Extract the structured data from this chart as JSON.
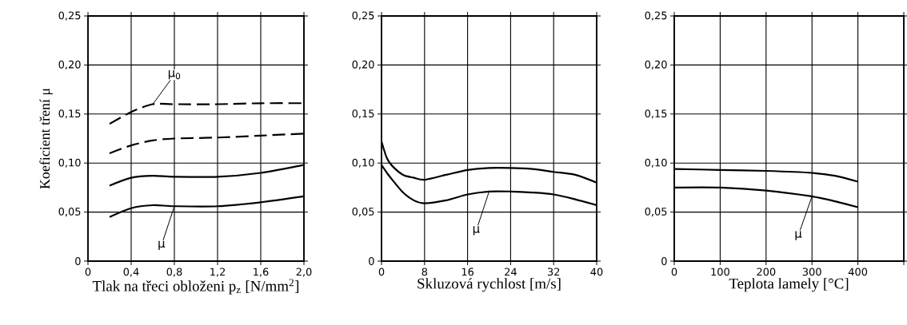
{
  "chart_data": [
    {
      "type": "line",
      "ylabel": "Koeficient tření μ",
      "xlabel": "Tlak na třeci obloženi p$_{z}$ [N/mm$^{2}$]",
      "grid": true,
      "marker": "none",
      "xlim": [
        0,
        2.0
      ],
      "ylim": [
        0,
        0.25
      ],
      "xticks": [
        0,
        {
          "value": 0.4,
          "label": "0,4"
        },
        {
          "value": 0.8,
          "label": "0,8"
        },
        {
          "value": 1.2,
          "label": "1,2"
        },
        {
          "value": 1.6,
          "label": "1,6"
        },
        {
          "value": 2.0,
          "label": "2,0"
        }
      ],
      "yticks": [
        0,
        {
          "value": 0.05,
          "label": "0,05"
        },
        {
          "value": 0.1,
          "label": "0,10"
        },
        {
          "value": 0.15,
          "label": "0,15"
        },
        {
          "value": 0.2,
          "label": "0,20"
        },
        {
          "value": 0.25,
          "label": "0,25"
        }
      ],
      "series": [
        {
          "color": "#000000",
          "line_style": "dashed",
          "x": [
            0.2,
            0.4,
            0.6,
            0.8,
            1.2,
            1.6,
            2.0
          ],
          "values": [
            0.14,
            0.152,
            0.16,
            0.16,
            0.16,
            0.161,
            0.161
          ]
        },
        {
          "color": "#000000",
          "line_style": "dashed",
          "x": [
            0.2,
            0.4,
            0.6,
            0.8,
            1.2,
            1.6,
            2.0
          ],
          "values": [
            0.11,
            0.118,
            0.123,
            0.125,
            0.126,
            0.128,
            0.13
          ]
        },
        {
          "color": "#000000",
          "line_style": "solid",
          "x": [
            0.2,
            0.4,
            0.6,
            0.8,
            1.2,
            1.6,
            2.0
          ],
          "values": [
            0.077,
            0.085,
            0.087,
            0.086,
            0.086,
            0.09,
            0.098
          ]
        },
        {
          "color": "#000000",
          "line_style": "solid",
          "x": [
            0.2,
            0.4,
            0.6,
            0.8,
            1.2,
            1.6,
            2.0
          ],
          "values": [
            0.045,
            0.054,
            0.057,
            0.056,
            0.056,
            0.06,
            0.066
          ]
        }
      ],
      "annotations": [
        {
          "text": "μ$_{0}$",
          "x": 0.6,
          "y": 0.16
        },
        {
          "text": "μ",
          "x": 0.8,
          "y": 0.056
        }
      ]
    },
    {
      "type": "line",
      "xlabel": "Skluzová rychlost [m/s]",
      "grid": true,
      "marker": "none",
      "xlim": [
        0,
        40
      ],
      "ylim": [
        0,
        0.25
      ],
      "xticks": [
        0,
        8,
        16,
        24,
        32,
        40
      ],
      "yticks": [
        0,
        {
          "value": 0.05,
          "label": "0,05"
        },
        {
          "value": 0.1,
          "label": "0,10"
        },
        {
          "value": 0.15,
          "label": "0,15"
        },
        {
          "value": 0.2,
          "label": "0,20"
        },
        {
          "value": 0.25,
          "label": "0,25"
        }
      ],
      "series": [
        {
          "color": "#000000",
          "line_style": "solid",
          "x": [
            0,
            1,
            2,
            4,
            6,
            8,
            12,
            16,
            20,
            24,
            28,
            32,
            36,
            40
          ],
          "values": [
            0.122,
            0.105,
            0.097,
            0.088,
            0.085,
            0.083,
            0.088,
            0.093,
            0.095,
            0.095,
            0.094,
            0.091,
            0.088,
            0.08
          ]
        },
        {
          "color": "#000000",
          "line_style": "solid",
          "x": [
            0,
            1,
            2,
            4,
            6,
            8,
            12,
            16,
            20,
            24,
            28,
            32,
            36,
            40
          ],
          "values": [
            0.098,
            0.09,
            0.083,
            0.07,
            0.062,
            0.059,
            0.062,
            0.068,
            0.071,
            0.071,
            0.07,
            0.068,
            0.063,
            0.057
          ]
        }
      ],
      "annotations": [
        {
          "text": "μ",
          "x": 20,
          "y": 0.071
        }
      ]
    },
    {
      "type": "line",
      "xlabel": "Teplota lamely [°C]",
      "grid": true,
      "marker": "none",
      "xlim": [
        0,
        500
      ],
      "ylim": [
        0,
        0.25
      ],
      "xticks": [
        0,
        100,
        200,
        300,
        400,
        {
          "value": 500,
          "label": null
        }
      ],
      "yticks": [
        0,
        {
          "value": 0.05,
          "label": "0,05"
        },
        {
          "value": 0.1,
          "label": "0,10"
        },
        {
          "value": 0.15,
          "label": "0,15"
        },
        {
          "value": 0.2,
          "label": "0,20"
        },
        {
          "value": 0.25,
          "label": "0,25"
        }
      ],
      "series": [
        {
          "color": "#000000",
          "line_style": "solid",
          "x": [
            0,
            100,
            200,
            300,
            350,
            400
          ],
          "values": [
            0.094,
            0.093,
            0.092,
            0.09,
            0.087,
            0.081
          ]
        },
        {
          "color": "#000000",
          "line_style": "solid",
          "x": [
            0,
            100,
            200,
            300,
            350,
            400
          ],
          "values": [
            0.075,
            0.075,
            0.072,
            0.066,
            0.061,
            0.055
          ]
        }
      ],
      "annotations": [
        {
          "text": "μ",
          "x": 300,
          "y": 0.066
        }
      ]
    }
  ]
}
